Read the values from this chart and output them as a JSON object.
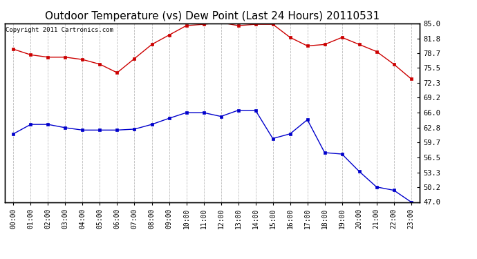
{
  "title": "Outdoor Temperature (vs) Dew Point (Last 24 Hours) 20110531",
  "copyright": "Copyright 2011 Cartronics.com",
  "x_labels": [
    "00:00",
    "01:00",
    "02:00",
    "03:00",
    "04:00",
    "05:00",
    "06:00",
    "07:00",
    "08:00",
    "09:00",
    "10:00",
    "11:00",
    "12:00",
    "13:00",
    "14:00",
    "15:00",
    "16:00",
    "17:00",
    "18:00",
    "19:00",
    "20:00",
    "21:00",
    "22:00",
    "23:00"
  ],
  "temp_data": [
    79.5,
    78.3,
    77.8,
    77.8,
    77.3,
    76.3,
    74.5,
    77.5,
    80.5,
    82.5,
    84.5,
    84.8,
    85.2,
    84.5,
    84.8,
    84.8,
    82.0,
    80.2,
    80.5,
    82.0,
    80.5,
    79.0,
    76.3,
    73.2
  ],
  "dew_data": [
    61.5,
    63.5,
    63.5,
    62.8,
    62.3,
    62.3,
    62.3,
    62.5,
    63.5,
    64.8,
    66.0,
    66.0,
    65.2,
    66.5,
    66.5,
    60.5,
    61.5,
    64.5,
    57.5,
    57.2,
    53.5,
    50.2,
    49.5,
    47.0
  ],
  "temp_color": "#cc0000",
  "dew_color": "#0000cc",
  "bg_color": "#ffffff",
  "grid_color": "#bbbbbb",
  "ylim_min": 47.0,
  "ylim_max": 85.0,
  "yticks_right": [
    85.0,
    81.8,
    78.7,
    75.5,
    72.3,
    69.2,
    66.0,
    62.8,
    59.7,
    56.5,
    53.3,
    50.2,
    47.0
  ],
  "title_fontsize": 11,
  "copyright_fontsize": 6.5,
  "tick_fontsize": 7,
  "ytick_fontsize": 7.5
}
